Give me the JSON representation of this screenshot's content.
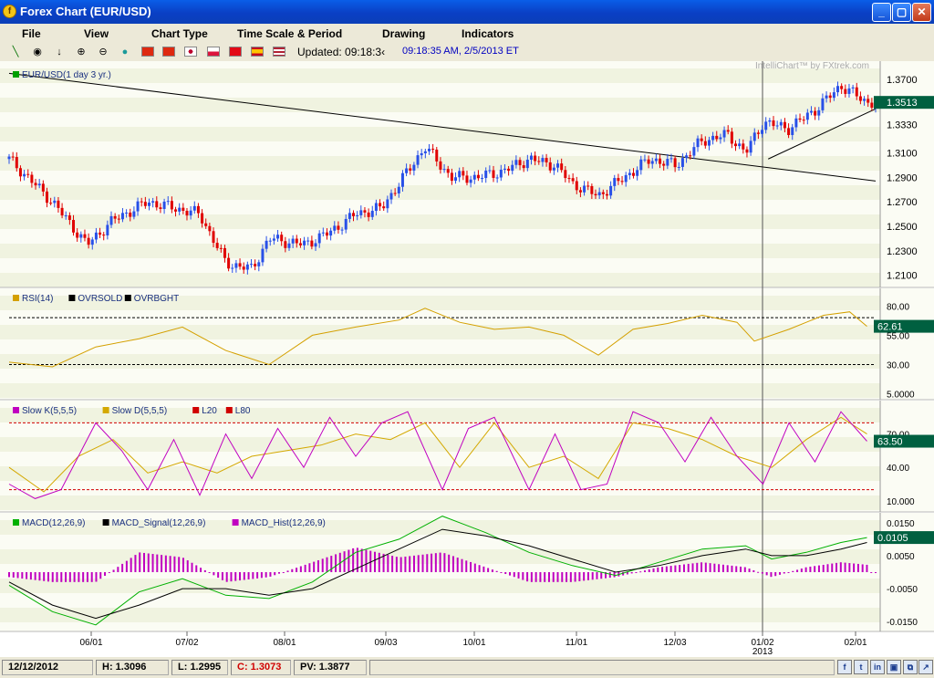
{
  "window": {
    "title": "Forex Chart (EUR/USD)",
    "min_label": "_",
    "max_label": "▢",
    "close_label": "✕"
  },
  "menu": {
    "items": [
      "File",
      "View",
      "Chart Type",
      "Time Scale & Period",
      "Drawing",
      "Indicators"
    ]
  },
  "toolbar": {
    "tools": [
      "line-tool-icon",
      "target-icon",
      "arrow-down-icon",
      "zoom-in-icon",
      "zoom-out-icon",
      "globe-icon"
    ],
    "flags": [
      "china-flag",
      "hongkong-flag",
      "japan-flag",
      "poland-flag",
      "turkey-flag",
      "spain-flag",
      "us-flag"
    ],
    "updated_label": "Updated: 09:18:3‹",
    "timestamp": "09:18:35 AM, 2/5/2013 ET"
  },
  "chart": {
    "watermark": "IntelliChart™ by FXtrek.com",
    "price_legend": "EUR/USD(1 day  3 yr.)",
    "price_ticks": [
      "1.3700",
      "1.3510",
      "1.3330",
      "1.3100",
      "1.2900",
      "1.2700",
      "1.2500",
      "1.2300",
      "1.2100"
    ],
    "price_tick_values": [
      1.37,
      1.351,
      1.333,
      1.31,
      1.29,
      1.27,
      1.25,
      1.23,
      1.21
    ],
    "price_current": "1.3513",
    "rsi_legend": [
      "RSI(14)",
      "OVRSOLD",
      "OVRBGHT"
    ],
    "rsi_ticks": [
      "80.00",
      "55.00",
      "30.00",
      "5.0000"
    ],
    "rsi_current": "62.61",
    "stoch_legend": [
      "Slow K(5,5,5)",
      "Slow D(5,5,5)",
      "L20",
      "L80"
    ],
    "stoch_ticks": [
      "70.00",
      "40.00",
      "10.000"
    ],
    "stoch_current": "63.50",
    "macd_legend": [
      "MACD(12,26,9)",
      "MACD_Signal(12,26,9)",
      "MACD_Hist(12,26,9)"
    ],
    "macd_ticks": [
      "0.0150",
      "0.0050",
      "-0.0050",
      "-0.0150"
    ],
    "macd_current": "0.0105",
    "x_labels": [
      "06/01",
      "07/02",
      "08/01",
      "09/03",
      "10/01",
      "11/01",
      "12/03",
      "01/02",
      "02/01"
    ],
    "year_label": "2013",
    "colors": {
      "up": "#2850e8",
      "down": "#e00000",
      "rsi": "#d4a000",
      "slowk": "#c000c0",
      "slowd": "#d4a800",
      "macd": "#00b000",
      "signal": "#000000",
      "hist": "#c000c0",
      "band": "#f0f3e0",
      "tag": "#006040"
    }
  },
  "chart_data": [
    {
      "type": "candlestick",
      "title": "EUR/USD(1 day  3 yr.)",
      "x_labels": [
        "06/01",
        "07/02",
        "08/01",
        "09/03",
        "10/01",
        "11/01",
        "12/03",
        "01/02",
        "02/01"
      ],
      "ylim": [
        1.2,
        1.385
      ],
      "close_path": [
        [
          0,
          1.305
        ],
        [
          0.05,
          1.27
        ],
        [
          0.09,
          1.235
        ],
        [
          0.12,
          1.255
        ],
        [
          0.16,
          1.27
        ],
        [
          0.19,
          1.265
        ],
        [
          0.22,
          1.26
        ],
        [
          0.25,
          1.22
        ],
        [
          0.28,
          1.215
        ],
        [
          0.3,
          1.24
        ],
        [
          0.34,
          1.235
        ],
        [
          0.37,
          1.245
        ],
        [
          0.4,
          1.26
        ],
        [
          0.43,
          1.265
        ],
        [
          0.46,
          1.295
        ],
        [
          0.48,
          1.315
        ],
        [
          0.51,
          1.29
        ],
        [
          0.54,
          1.29
        ],
        [
          0.57,
          1.295
        ],
        [
          0.6,
          1.305
        ],
        [
          0.63,
          1.3
        ],
        [
          0.65,
          1.285
        ],
        [
          0.68,
          1.275
        ],
        [
          0.71,
          1.29
        ],
        [
          0.74,
          1.305
        ],
        [
          0.77,
          1.3
        ],
        [
          0.8,
          1.32
        ],
        [
          0.83,
          1.325
        ],
        [
          0.85,
          1.31
        ],
        [
          0.87,
          1.335
        ],
        [
          0.9,
          1.33
        ],
        [
          0.93,
          1.345
        ],
        [
          0.96,
          1.365
        ],
        [
          0.99,
          1.3513
        ]
      ],
      "trendlines": [
        {
          "from": [
            0,
            1.375
          ],
          "to": [
            1,
            1.287
          ]
        },
        {
          "from": [
            0.876,
            1.305
          ],
          "to": [
            1,
            1.346
          ]
        }
      ],
      "last_value": 1.3513
    },
    {
      "type": "line",
      "title": "RSI(14)",
      "ylim": [
        0,
        95
      ],
      "levels": [
        {
          "name": "OVRSOLD",
          "value": 30
        },
        {
          "name": "OVRBGHT",
          "value": 70
        }
      ],
      "x": [
        0,
        0.05,
        0.1,
        0.15,
        0.2,
        0.25,
        0.3,
        0.35,
        0.4,
        0.45,
        0.48,
        0.52,
        0.56,
        0.6,
        0.64,
        0.68,
        0.72,
        0.76,
        0.8,
        0.84,
        0.86,
        0.9,
        0.94,
        0.97,
        0.99
      ],
      "values": [
        32,
        28,
        45,
        52,
        62,
        42,
        30,
        55,
        62,
        68,
        78,
        66,
        60,
        62,
        55,
        38,
        60,
        65,
        72,
        66,
        50,
        60,
        72,
        75,
        62.61
      ],
      "last_value": 62.61
    },
    {
      "type": "line",
      "title": "Slow Stochastic",
      "ylim": [
        0,
        100
      ],
      "levels": [
        {
          "name": "L20",
          "value": 20
        },
        {
          "name": "L80",
          "value": 80
        }
      ],
      "series": [
        {
          "name": "Slow K(5,5,5)",
          "x": [
            0,
            0.03,
            0.06,
            0.1,
            0.13,
            0.16,
            0.19,
            0.22,
            0.25,
            0.28,
            0.31,
            0.34,
            0.37,
            0.4,
            0.43,
            0.46,
            0.5,
            0.53,
            0.56,
            0.6,
            0.63,
            0.66,
            0.69,
            0.72,
            0.75,
            0.78,
            0.81,
            0.84,
            0.87,
            0.9,
            0.93,
            0.96,
            0.99
          ],
          "values": [
            25,
            12,
            20,
            80,
            55,
            20,
            65,
            15,
            70,
            30,
            75,
            40,
            85,
            50,
            80,
            90,
            20,
            75,
            85,
            20,
            70,
            20,
            25,
            90,
            80,
            45,
            85,
            50,
            25,
            80,
            45,
            90,
            63.5
          ]
        },
        {
          "name": "Slow D(5,5,5)",
          "x": [
            0,
            0.04,
            0.08,
            0.12,
            0.16,
            0.2,
            0.24,
            0.28,
            0.32,
            0.36,
            0.4,
            0.44,
            0.48,
            0.52,
            0.56,
            0.6,
            0.64,
            0.68,
            0.72,
            0.76,
            0.8,
            0.84,
            0.88,
            0.92,
            0.96,
            0.99
          ],
          "values": [
            40,
            18,
            50,
            65,
            35,
            45,
            35,
            50,
            55,
            60,
            70,
            65,
            80,
            40,
            80,
            40,
            50,
            30,
            80,
            75,
            65,
            50,
            40,
            65,
            85,
            70
          ]
        }
      ],
      "last_value": 63.5
    },
    {
      "type": "line",
      "title": "MACD",
      "ylim": [
        -0.018,
        0.018
      ],
      "series": [
        {
          "name": "MACD(12,26,9)",
          "x": [
            0,
            0.05,
            0.1,
            0.15,
            0.2,
            0.25,
            0.3,
            0.35,
            0.4,
            0.45,
            0.5,
            0.55,
            0.6,
            0.65,
            0.7,
            0.75,
            0.8,
            0.85,
            0.88,
            0.92,
            0.96,
            0.99
          ],
          "values": [
            -0.004,
            -0.012,
            -0.016,
            -0.006,
            -0.002,
            -0.007,
            -0.008,
            -0.003,
            0.006,
            0.01,
            0.017,
            0.012,
            0.006,
            0.002,
            -0.001,
            0.003,
            0.007,
            0.008,
            0.004,
            0.006,
            0.009,
            0.0105
          ]
        },
        {
          "name": "MACD_Signal(12,26,9)",
          "x": [
            0,
            0.05,
            0.1,
            0.15,
            0.2,
            0.25,
            0.3,
            0.35,
            0.4,
            0.45,
            0.5,
            0.55,
            0.6,
            0.65,
            0.7,
            0.75,
            0.8,
            0.85,
            0.88,
            0.92,
            0.96,
            0.99
          ],
          "values": [
            -0.003,
            -0.01,
            -0.014,
            -0.01,
            -0.005,
            -0.005,
            -0.007,
            -0.005,
            0.001,
            0.007,
            0.013,
            0.011,
            0.008,
            0.004,
            0.0,
            0.002,
            0.005,
            0.007,
            0.005,
            0.005,
            0.007,
            0.009
          ]
        }
      ],
      "last_value": 0.0105
    }
  ],
  "status": {
    "date": "12/12/2012",
    "high": "H: 1.3096",
    "low": "L: 1.2995",
    "close": "C: 1.3073",
    "pv": "PV: 1.3877"
  }
}
